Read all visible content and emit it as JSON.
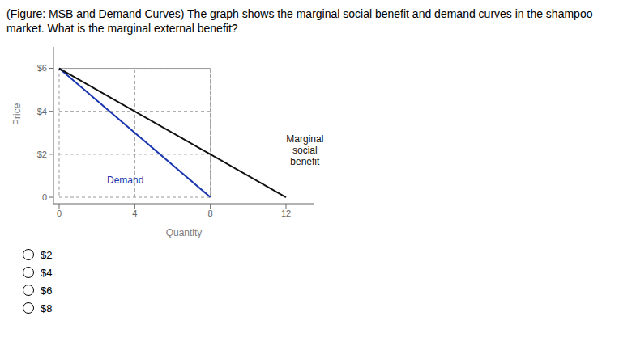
{
  "chart_data": {
    "type": "line",
    "title": "(Figure: MSB and Demand Curves) The graph shows the marginal social benefit and demand curves in the shampoo\nmarket. What is the marginal external benefit?",
    "x_label": "Quantity",
    "y_label": "Price",
    "series": [
      {
        "x": [
          0,
          8,
          8,
          0,
          0
        ],
        "values": [
          0,
          0,
          6,
          6,
          0
        ],
        "color": "#999999",
        "line_style": "dashed"
      },
      {
        "x": [
          0,
          8
        ],
        "values": [
          6,
          6
        ],
        "color": "#999999",
        "line_style": "dashed"
      },
      {
        "x": [
          0,
          8
        ],
        "values": [
          4,
          4
        ],
        "color": "#999999",
        "line_style": "dashed"
      },
      {
        "x": [
          0,
          8
        ],
        "values": [
          2,
          2
        ],
        "color": "#999999",
        "line_style": "dashed"
      },
      {
        "x": [
          4,
          4
        ],
        "values": [
          0,
          6
        ],
        "color": "#999999",
        "line_style": "dashed"
      },
      {
        "x": [
          8,
          8
        ],
        "values": [
          0,
          6
        ],
        "color": "#999999",
        "line_style": "dashed"
      },
      {
        "x": [
          0,
          8
        ],
        "values": [
          6,
          0
        ],
        "color": "#1a35b0",
        "line_style": "solid"
      },
      {
        "x": [
          0,
          12
        ],
        "values": [
          6,
          0
        ],
        "color": "#111111",
        "line_style": "solid"
      }
    ],
    "xlim": [
      -0.3,
      13.5
    ],
    "xticks": [
      0,
      4,
      8,
      12
    ],
    "ylim": [
      -0.3,
      7.0
    ],
    "yticks": [
      0,
      {
        "value": 2,
        "label": "$2"
      },
      {
        "value": 4,
        "label": "$4"
      },
      {
        "value": 6,
        "label": "$6"
      }
    ],
    "grid": false,
    "annotations": [
      {
        "text": "Demand",
        "x": 3.5,
        "y": 0.8,
        "color": "#1a35b0"
      },
      {
        "text": "Marginal\nsocial\nbenefit",
        "x": 13.0,
        "y": 2.2,
        "color": "#111111"
      }
    ],
    "choices": [
      "$2",
      "$4",
      "$6",
      "$8"
    ]
  }
}
